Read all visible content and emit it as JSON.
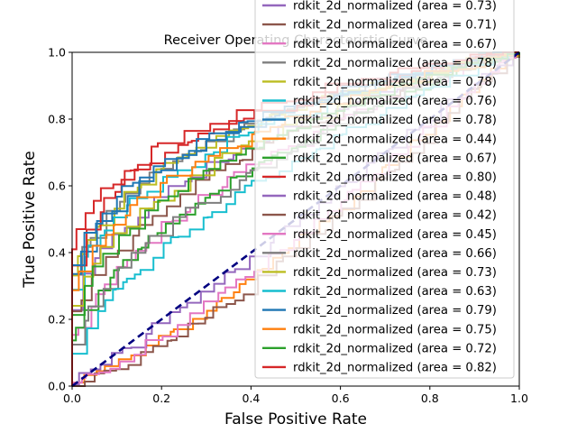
{
  "chart_data": {
    "type": "line",
    "title": "Receiver Operating Characteristic Curve",
    "xlabel": "False Positive Rate",
    "ylabel": "True Positive Rate",
    "xlim": [
      0,
      1
    ],
    "ylim": [
      0,
      1
    ],
    "xticks": [
      "0.0",
      "0.2",
      "0.4",
      "0.6",
      "0.8",
      "1.0"
    ],
    "yticks": [
      "0.0",
      "0.2",
      "0.4",
      "0.6",
      "0.8",
      "1.0"
    ],
    "grid": false,
    "legend_position": "upper-right",
    "diagonal": {
      "x": [
        0,
        1
      ],
      "y": [
        0,
        1
      ],
      "color": "#000080",
      "style": "dashed"
    },
    "series": [
      {
        "name": "rdkit_2d_normalized (area = 0.73)",
        "color": "#9467bd",
        "area": 0.73
      },
      {
        "name": "rdkit_2d_normalized (area = 0.71)",
        "color": "#8c564b",
        "area": 0.71
      },
      {
        "name": "rdkit_2d_normalized (area = 0.67)",
        "color": "#e377c2",
        "area": 0.67
      },
      {
        "name": "rdkit_2d_normalized (area = 0.78)",
        "color": "#7f7f7f",
        "area": 0.78
      },
      {
        "name": "rdkit_2d_normalized (area = 0.78)",
        "color": "#bcbd22",
        "area": 0.78
      },
      {
        "name": "rdkit_2d_normalized (area = 0.76)",
        "color": "#17becf",
        "area": 0.76
      },
      {
        "name": "rdkit_2d_normalized (area = 0.78)",
        "color": "#1f77b4",
        "area": 0.78
      },
      {
        "name": "rdkit_2d_normalized (area = 0.44)",
        "color": "#ff7f0e",
        "area": 0.44
      },
      {
        "name": "rdkit_2d_normalized (area = 0.67)",
        "color": "#2ca02c",
        "area": 0.67
      },
      {
        "name": "rdkit_2d_normalized (area = 0.80)",
        "color": "#d62728",
        "area": 0.8
      },
      {
        "name": "rdkit_2d_normalized (area = 0.48)",
        "color": "#9467bd",
        "area": 0.48
      },
      {
        "name": "rdkit_2d_normalized (area = 0.42)",
        "color": "#8c564b",
        "area": 0.42
      },
      {
        "name": "rdkit_2d_normalized (area = 0.45)",
        "color": "#e377c2",
        "area": 0.45
      },
      {
        "name": "rdkit_2d_normalized (area = 0.66)",
        "color": "#7f7f7f",
        "area": 0.66
      },
      {
        "name": "rdkit_2d_normalized (area = 0.73)",
        "color": "#bcbd22",
        "area": 0.73
      },
      {
        "name": "rdkit_2d_normalized (area = 0.63)",
        "color": "#17becf",
        "area": 0.63
      },
      {
        "name": "rdkit_2d_normalized (area = 0.79)",
        "color": "#1f77b4",
        "area": 0.79
      },
      {
        "name": "rdkit_2d_normalized (area = 0.75)",
        "color": "#ff7f0e",
        "area": 0.75
      },
      {
        "name": "rdkit_2d_normalized (area = 0.72)",
        "color": "#2ca02c",
        "area": 0.72
      },
      {
        "name": "rdkit_2d_normalized (area = 0.82)",
        "color": "#d62728",
        "area": 0.82
      }
    ]
  }
}
